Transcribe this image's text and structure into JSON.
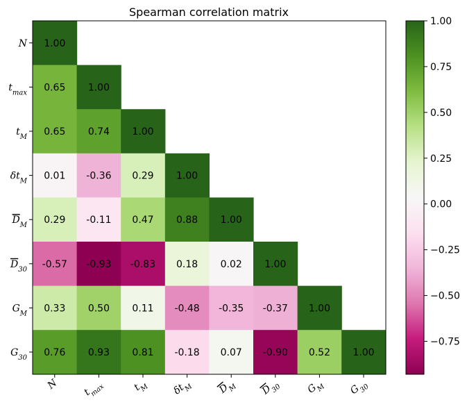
{
  "chart_data": {
    "type": "heatmap",
    "title": "Spearman correlation matrix",
    "labels": [
      {
        "base": "N",
        "sub": "",
        "over": false
      },
      {
        "base": "t",
        "sub": "max",
        "over": false
      },
      {
        "base": "t",
        "sub": "M",
        "over": false
      },
      {
        "base": "δt",
        "sub": "M",
        "over": false
      },
      {
        "base": "D",
        "sub": "M",
        "over": true
      },
      {
        "base": "D",
        "sub": "30",
        "over": true
      },
      {
        "base": "G",
        "sub": "M",
        "over": false
      },
      {
        "base": "G",
        "sub": "30",
        "over": false
      }
    ],
    "values": [
      [
        1.0
      ],
      [
        0.65,
        1.0
      ],
      [
        0.65,
        0.74,
        1.0
      ],
      [
        0.01,
        -0.36,
        0.29,
        1.0
      ],
      [
        0.29,
        -0.11,
        0.47,
        0.88,
        1.0
      ],
      [
        -0.57,
        -0.93,
        -0.83,
        0.18,
        0.02,
        1.0
      ],
      [
        0.33,
        0.5,
        0.11,
        -0.48,
        -0.35,
        -0.37,
        1.0
      ],
      [
        0.76,
        0.93,
        0.81,
        -0.18,
        0.07,
        -0.9,
        0.52,
        1.0
      ]
    ],
    "colorbar": {
      "min": -0.93,
      "max": 1.0,
      "ticks": [
        "1.00",
        "0.75",
        "0.50",
        "0.25",
        "0.00",
        "-0.25",
        "-0.50",
        "-0.75"
      ],
      "colormap": "PiYG",
      "colors": [
        "#8e0152",
        "#c51b7d",
        "#de77ae",
        "#f1b6da",
        "#fde0ef",
        "#f7f7f7",
        "#e6f5d0",
        "#b8e186",
        "#7fbc41",
        "#4d9221",
        "#276419"
      ]
    }
  }
}
